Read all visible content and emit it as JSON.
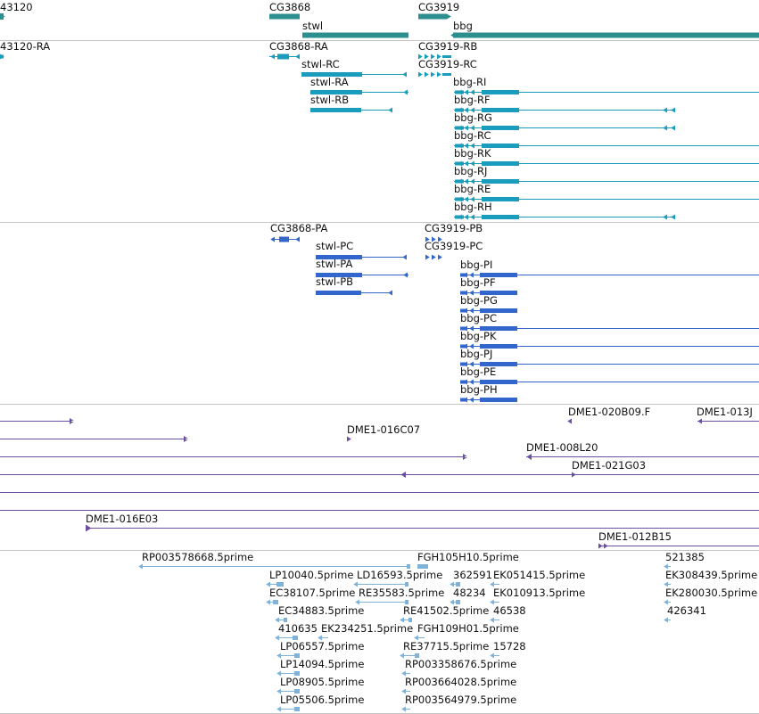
{
  "colors": {
    "gene": "#2c8f8f",
    "transcript": "#1a9dbd",
    "protein": "#3366cc",
    "bac": "#6a4fa3",
    "est": "#7fb2d9",
    "separator": "#c4c4c4",
    "text": "#111111"
  },
  "tracks": {
    "genes": [
      {
        "label": "43120",
        "dir": "right"
      },
      {
        "label": "CG3868",
        "dir": "none"
      },
      {
        "label": "stwl",
        "dir": "none"
      },
      {
        "label": "CG3919",
        "dir": "right"
      },
      {
        "label": "bbg",
        "dir": "left"
      }
    ],
    "transcripts": [
      {
        "label": "43120-RA"
      },
      {
        "label": "CG3868-RA"
      },
      {
        "label": "CG3919-RB"
      },
      {
        "label": "CG3919-RC"
      },
      {
        "label": "stwl-RC"
      },
      {
        "label": "stwl-RA"
      },
      {
        "label": "stwl-RB"
      },
      {
        "label": "bbg-RI"
      },
      {
        "label": "bbg-RF"
      },
      {
        "label": "bbg-RG"
      },
      {
        "label": "bbg-RC"
      },
      {
        "label": "bbg-RK"
      },
      {
        "label": "bbg-RJ"
      },
      {
        "label": "bbg-RE"
      },
      {
        "label": "bbg-RH"
      }
    ],
    "proteins": [
      {
        "label": "CG3868-PA"
      },
      {
        "label": "CG3919-PB"
      },
      {
        "label": "CG3919-PC"
      },
      {
        "label": "stwl-PC"
      },
      {
        "label": "stwl-PA"
      },
      {
        "label": "stwl-PB"
      },
      {
        "label": "bbg-PI"
      },
      {
        "label": "bbg-PF"
      },
      {
        "label": "bbg-PG"
      },
      {
        "label": "bbg-PC"
      },
      {
        "label": "bbg-PK"
      },
      {
        "label": "bbg-PJ"
      },
      {
        "label": "bbg-PE"
      },
      {
        "label": "bbg-PH"
      }
    ],
    "bacs": [
      {
        "label": "DME1-020B09.F"
      },
      {
        "label": "DME1-013J"
      },
      {
        "label": "DME1-016C07"
      },
      {
        "label": "DME1-008L20"
      },
      {
        "label": "DME1-021G03"
      },
      {
        "label": "DME1-016E03"
      },
      {
        "label": "DME1-012B15"
      }
    ],
    "ests": [
      {
        "label": "RP003578668.5prime"
      },
      {
        "label": "FGH105H10.5prime"
      },
      {
        "label": "521385"
      },
      {
        "label": "LP10040.5prime"
      },
      {
        "label": "LD16593.5prime"
      },
      {
        "label": "362591"
      },
      {
        "label": "EK051415.5prime"
      },
      {
        "label": "EK308439.5prime"
      },
      {
        "label": "EC38107.5prime"
      },
      {
        "label": "RE35583.5prime"
      },
      {
        "label": "48234"
      },
      {
        "label": "EK010913.5prime"
      },
      {
        "label": "EK280030.5prime"
      },
      {
        "label": "EC34883.5prime"
      },
      {
        "label": "RE41502.5prime"
      },
      {
        "label": "46538"
      },
      {
        "label": "426341"
      },
      {
        "label": "410635"
      },
      {
        "label": "EK234251.5prime"
      },
      {
        "label": "FGH109H01.5prime"
      },
      {
        "label": "LP06557.5prime"
      },
      {
        "label": "RE37715.5prime"
      },
      {
        "label": "15728"
      },
      {
        "label": "LP14094.5prime"
      },
      {
        "label": "RP003358676.5prime"
      },
      {
        "label": "LP08905.5prime"
      },
      {
        "label": "RP003664028.5prime"
      },
      {
        "label": "LP05506.5prime"
      },
      {
        "label": "RP003564979.5prime"
      }
    ]
  }
}
